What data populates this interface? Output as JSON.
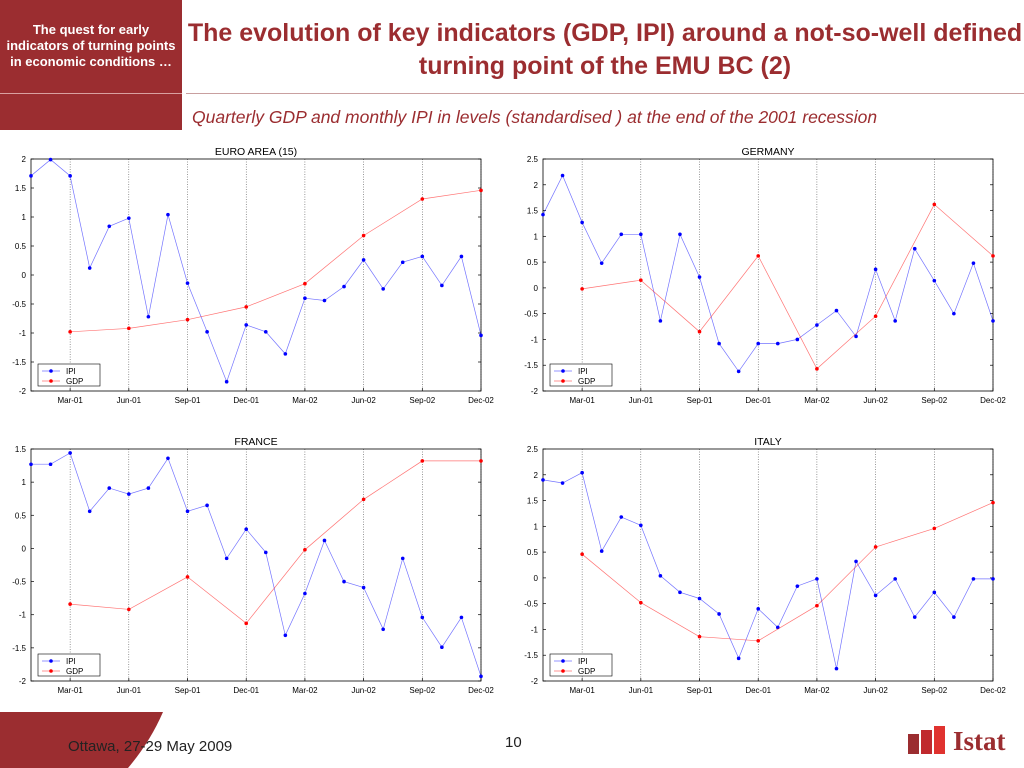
{
  "sidebar": {
    "title": "The quest for early indicators of turning points in economic conditions …"
  },
  "header": {
    "title": "The evolution of key indicators (GDP, IPI) around a not-so-well defined turning point of the EMU BC (2)",
    "subtitle": "Quarterly GDP and monthly IPI in levels (standardised ) at the end of the 2001 recession"
  },
  "footer": {
    "text": "Ottawa, 27-29 May 2009",
    "page": "10",
    "logo": "Istat"
  },
  "colors": {
    "brand": "#9b2d30",
    "ipi": "#0000ff",
    "gdp": "#ff0000"
  },
  "chart_data": [
    {
      "type": "line",
      "title": "EURO AREA (15)",
      "x_tick_labels": [
        "Mar-01",
        "Jun-01",
        "Sep-01",
        "Dec-01",
        "Mar-02",
        "Jun-02",
        "Sep-02",
        "Dec-02"
      ],
      "ylim": [
        -2,
        2
      ],
      "yticks": [
        "2",
        "1.5",
        "1",
        "0.5",
        "0",
        "-0.5",
        "-1",
        "-1.5",
        "-2"
      ],
      "legend": "bottom-left",
      "series": [
        {
          "name": "IPI",
          "x": [
            0,
            1,
            2,
            3,
            4,
            5,
            6,
            7,
            8,
            9,
            10,
            11,
            12,
            13,
            14,
            15,
            16,
            17,
            18,
            19,
            20,
            21,
            22,
            23
          ],
          "values": [
            1.71,
            1.99,
            1.71,
            0.12,
            0.84,
            0.98,
            -0.72,
            1.04,
            -0.14,
            -0.98,
            -1.84,
            -0.86,
            -0.98,
            -1.36,
            -0.4,
            -0.44,
            -0.2,
            0.26,
            -0.24,
            0.22,
            0.32,
            -0.18,
            0.32,
            -1.04
          ]
        },
        {
          "name": "GDP",
          "x": [
            2,
            5,
            8,
            11,
            14,
            17,
            20,
            23
          ],
          "values": [
            -0.98,
            -0.92,
            -0.77,
            -0.55,
            -0.15,
            0.68,
            1.31,
            1.46
          ]
        }
      ]
    },
    {
      "type": "line",
      "title": "GERMANY",
      "x_tick_labels": [
        "Mar-01",
        "Jun-01",
        "Sep-01",
        "Dec-01",
        "Mar-02",
        "Jun-02",
        "Sep-02",
        "Dec-02"
      ],
      "ylim": [
        -2,
        2.5
      ],
      "yticks": [
        "2.5",
        "2",
        "1.5",
        "1",
        "0.5",
        "0",
        "-0.5",
        "-1",
        "-1.5",
        "-2"
      ],
      "legend": "bottom-left",
      "series": [
        {
          "name": "IPI",
          "x": [
            0,
            1,
            2,
            3,
            4,
            5,
            6,
            7,
            8,
            9,
            10,
            11,
            12,
            13,
            14,
            15,
            16,
            17,
            18,
            19,
            20,
            21,
            22,
            23
          ],
          "values": [
            1.42,
            2.18,
            1.27,
            0.48,
            1.04,
            1.04,
            -0.64,
            1.04,
            0.21,
            -1.08,
            -1.62,
            -1.08,
            -1.08,
            -1.0,
            -0.72,
            -0.44,
            -0.94,
            0.36,
            -0.64,
            0.76,
            0.14,
            -0.5,
            0.48,
            -0.64
          ]
        },
        {
          "name": "GDP",
          "x": [
            2,
            5,
            8,
            11,
            14,
            17,
            20,
            23
          ],
          "values": [
            -0.02,
            0.15,
            -0.85,
            0.62,
            -1.57,
            -0.55,
            1.62,
            0.62
          ]
        }
      ]
    },
    {
      "type": "line",
      "title": "FRANCE",
      "x_tick_labels": [
        "Mar-01",
        "Jun-01",
        "Sep-01",
        "Dec-01",
        "Mar-02",
        "Jun-02",
        "Sep-02",
        "Dec-02"
      ],
      "ylim": [
        -2,
        1.5
      ],
      "yticks": [
        "1.5",
        "1",
        "0.5",
        "0",
        "-0.5",
        "-1",
        "-1.5",
        "-2"
      ],
      "legend": "bottom-left",
      "series": [
        {
          "name": "IPI",
          "x": [
            0,
            1,
            2,
            3,
            4,
            5,
            6,
            7,
            8,
            9,
            10,
            11,
            12,
            13,
            14,
            15,
            16,
            17,
            18,
            19,
            20,
            21,
            22,
            23
          ],
          "values": [
            1.27,
            1.27,
            1.44,
            0.56,
            0.91,
            0.82,
            0.91,
            1.36,
            0.56,
            0.65,
            -0.15,
            0.29,
            -0.06,
            -1.31,
            -0.68,
            0.12,
            -0.5,
            -0.59,
            -1.22,
            -0.15,
            -1.04,
            -1.49,
            -1.04,
            -1.93
          ]
        },
        {
          "name": "GDP",
          "x": [
            2,
            5,
            8,
            11,
            14,
            17,
            20,
            23
          ],
          "values": [
            -0.84,
            -0.92,
            -0.43,
            -1.13,
            -0.02,
            0.74,
            1.32,
            1.32
          ]
        }
      ]
    },
    {
      "type": "line",
      "title": "ITALY",
      "x_tick_labels": [
        "Mar-01",
        "Jun-01",
        "Sep-01",
        "Dec-01",
        "Mar-02",
        "Jun-02",
        "Sep-02",
        "Dec-02"
      ],
      "ylim": [
        -2,
        2.5
      ],
      "yticks": [
        "2.5",
        "2",
        "1.5",
        "1",
        "0.5",
        "0",
        "-0.5",
        "-1",
        "-1.5",
        "-2"
      ],
      "legend": "bottom-left",
      "series": [
        {
          "name": "IPI",
          "x": [
            0,
            1,
            2,
            3,
            4,
            5,
            6,
            7,
            8,
            9,
            10,
            11,
            12,
            13,
            14,
            15,
            16,
            17,
            18,
            19,
            20,
            21,
            22,
            23
          ],
          "values": [
            1.9,
            1.84,
            2.04,
            0.52,
            1.18,
            1.02,
            0.04,
            -0.28,
            -0.4,
            -0.7,
            -1.56,
            -0.6,
            -0.96,
            -0.16,
            -0.02,
            -1.76,
            0.32,
            -0.34,
            -0.02,
            -0.76,
            -0.28,
            -0.76,
            -0.02,
            -0.02
          ]
        },
        {
          "name": "GDP",
          "x": [
            2,
            5,
            8,
            11,
            14,
            17,
            20,
            23
          ],
          "values": [
            0.46,
            -0.48,
            -1.14,
            -1.22,
            -0.54,
            0.6,
            0.96,
            1.46
          ]
        }
      ]
    }
  ]
}
